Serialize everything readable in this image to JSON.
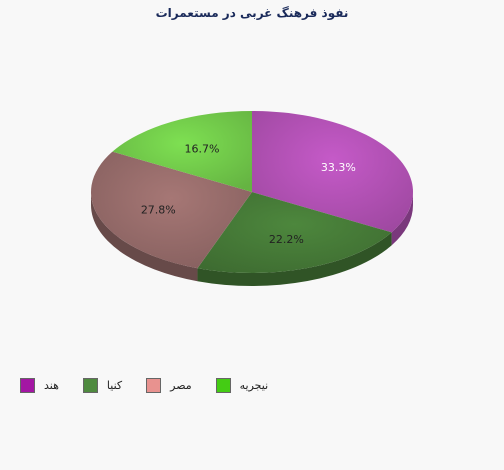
{
  "chart_data": {
    "type": "pie",
    "title": "نفوذ فرهنگ غربی در مستعمرات",
    "categories": [
      "هند",
      "کنیا",
      "مصر",
      "نیجریه"
    ],
    "values": [
      33.3,
      22.2,
      27.8,
      16.7
    ],
    "unit": "%",
    "colors": [
      "#a316a3",
      "#4f8a3f",
      "#e8928f",
      "#44cc14"
    ],
    "slice_colors": [
      "#c55ac8",
      "#4d873d",
      "#a67775",
      "#7ee052"
    ],
    "data_labels": [
      "33.3%",
      "22.2%",
      "27.8%",
      "16.7%"
    ],
    "legend_position": "bottom-left",
    "style": "3d"
  }
}
